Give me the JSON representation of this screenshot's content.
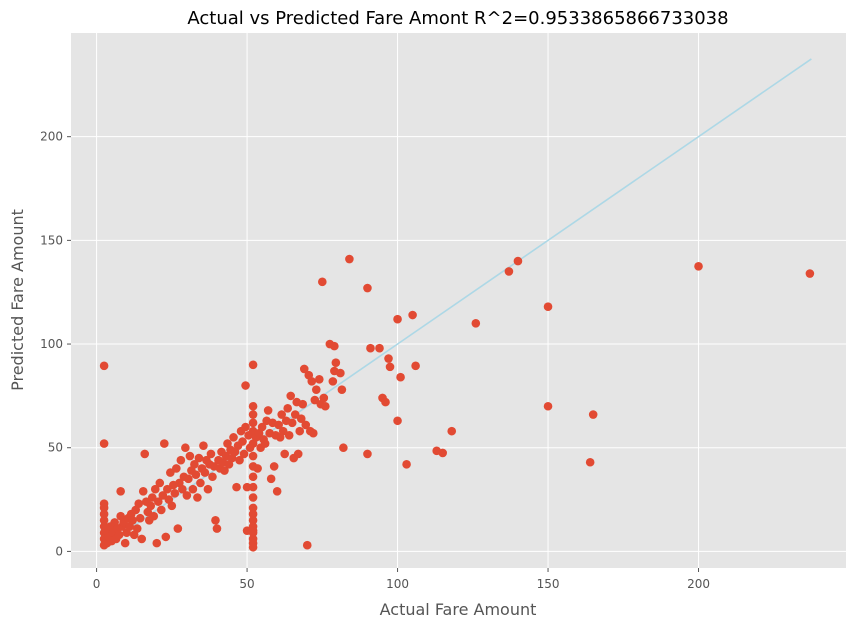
{
  "chart_data": {
    "type": "scatter",
    "title": "Actual vs Predicted Fare Amont R^2=0.9533865866733038",
    "xlabel": "Actual Fare Amount",
    "ylabel": "Predicted Fare Amount",
    "xlim": [
      -8.5,
      249
    ],
    "ylim": [
      -8,
      250
    ],
    "xticks": [
      0,
      50,
      100,
      150,
      200
    ],
    "yticks": [
      0,
      50,
      100,
      150,
      200
    ],
    "grid": true,
    "colors": {
      "background": "#e5e5e5",
      "points": "#e24a33",
      "reference_line": "#add8e6",
      "grid": "#ffffff"
    },
    "series": [
      {
        "name": "identity",
        "kind": "line",
        "x": [
          2.5,
          237.5
        ],
        "y": [
          2.5,
          237.5
        ]
      },
      {
        "name": "points",
        "kind": "scatter",
        "points": [
          [
            2.5,
            89.5
          ],
          [
            2.5,
            52
          ],
          [
            2.5,
            23
          ],
          [
            2.5,
            21
          ],
          [
            2.5,
            18
          ],
          [
            2.5,
            15
          ],
          [
            2.5,
            12
          ],
          [
            2.5,
            9
          ],
          [
            2.5,
            6
          ],
          [
            2.5,
            3
          ],
          [
            3,
            10
          ],
          [
            3.5,
            4
          ],
          [
            4,
            7
          ],
          [
            4.5,
            12
          ],
          [
            5,
            5
          ],
          [
            5.5,
            9
          ],
          [
            6,
            14
          ],
          [
            6.5,
            6
          ],
          [
            7,
            11
          ],
          [
            7.5,
            8
          ],
          [
            8,
            29
          ],
          [
            8,
            17
          ],
          [
            8.5,
            12
          ],
          [
            9,
            14
          ],
          [
            9.5,
            4
          ],
          [
            10,
            9
          ],
          [
            10.5,
            16
          ],
          [
            11,
            12
          ],
          [
            11.5,
            18
          ],
          [
            12,
            15
          ],
          [
            12.5,
            8
          ],
          [
            13,
            20
          ],
          [
            13.5,
            11
          ],
          [
            14,
            23
          ],
          [
            14.5,
            16
          ],
          [
            15,
            6
          ],
          [
            15.5,
            29
          ],
          [
            16,
            47
          ],
          [
            16.5,
            24
          ],
          [
            17,
            19
          ],
          [
            17.5,
            15
          ],
          [
            18,
            22
          ],
          [
            18.5,
            26
          ],
          [
            19,
            17
          ],
          [
            19.5,
            30
          ],
          [
            20,
            4
          ],
          [
            20.5,
            24
          ],
          [
            21,
            33
          ],
          [
            21.5,
            20
          ],
          [
            22,
            27
          ],
          [
            22.5,
            52
          ],
          [
            23,
            7
          ],
          [
            23.5,
            30
          ],
          [
            24,
            25
          ],
          [
            24.5,
            38
          ],
          [
            25,
            22
          ],
          [
            25.5,
            32
          ],
          [
            26,
            28
          ],
          [
            26.5,
            40
          ],
          [
            27,
            11
          ],
          [
            27.5,
            33
          ],
          [
            28,
            44
          ],
          [
            28.5,
            30
          ],
          [
            29,
            36
          ],
          [
            29.5,
            50
          ],
          [
            30,
            27
          ],
          [
            30.5,
            35
          ],
          [
            31,
            46
          ],
          [
            31.5,
            39
          ],
          [
            32,
            30
          ],
          [
            32.5,
            42
          ],
          [
            33,
            37
          ],
          [
            33.5,
            26
          ],
          [
            34,
            45
          ],
          [
            34.5,
            33
          ],
          [
            35,
            40
          ],
          [
            35.5,
            51
          ],
          [
            36,
            38
          ],
          [
            36.5,
            44
          ],
          [
            37,
            30
          ],
          [
            37.5,
            42
          ],
          [
            38,
            47
          ],
          [
            38.5,
            36
          ],
          [
            39,
            41
          ],
          [
            39.5,
            15
          ],
          [
            40,
            11
          ],
          [
            40.5,
            44
          ],
          [
            41,
            40
          ],
          [
            41.5,
            48
          ],
          [
            42,
            43
          ],
          [
            42.5,
            39
          ],
          [
            43,
            46
          ],
          [
            43.5,
            52
          ],
          [
            44,
            42
          ],
          [
            44.5,
            49
          ],
          [
            45,
            45
          ],
          [
            45.5,
            55
          ],
          [
            46,
            48
          ],
          [
            46.5,
            31
          ],
          [
            47,
            51
          ],
          [
            47.5,
            44
          ],
          [
            48,
            58
          ],
          [
            48.5,
            53
          ],
          [
            49,
            47
          ],
          [
            49.5,
            80
          ],
          [
            49.5,
            60
          ],
          [
            50,
            10
          ],
          [
            50,
            31
          ],
          [
            50.5,
            56
          ],
          [
            51,
            50
          ],
          [
            52,
            90
          ],
          [
            52,
            70
          ],
          [
            52,
            66
          ],
          [
            52,
            62
          ],
          [
            52,
            58
          ],
          [
            52,
            52
          ],
          [
            52,
            46
          ],
          [
            52,
            41
          ],
          [
            52,
            36
          ],
          [
            52,
            31
          ],
          [
            52,
            26
          ],
          [
            52,
            21
          ],
          [
            52,
            18
          ],
          [
            52,
            15
          ],
          [
            52,
            12
          ],
          [
            52,
            9
          ],
          [
            52,
            6
          ],
          [
            52,
            4
          ],
          [
            52,
            2
          ],
          [
            52,
            10
          ],
          [
            53,
            55
          ],
          [
            53.5,
            40
          ],
          [
            54,
            57
          ],
          [
            54.5,
            50
          ],
          [
            55,
            60
          ],
          [
            55.5,
            54
          ],
          [
            56,
            52
          ],
          [
            56.5,
            63
          ],
          [
            57,
            68
          ],
          [
            57.5,
            57
          ],
          [
            58,
            35
          ],
          [
            58.5,
            62
          ],
          [
            59,
            41
          ],
          [
            59.5,
            56
          ],
          [
            60,
            29
          ],
          [
            60.5,
            61
          ],
          [
            61,
            55
          ],
          [
            61.5,
            66
          ],
          [
            62,
            58
          ],
          [
            62.5,
            47
          ],
          [
            63,
            63
          ],
          [
            63.5,
            69
          ],
          [
            64,
            56
          ],
          [
            64.5,
            75
          ],
          [
            65,
            62
          ],
          [
            65.5,
            45
          ],
          [
            66,
            66
          ],
          [
            66.5,
            72
          ],
          [
            67,
            47
          ],
          [
            67.5,
            58
          ],
          [
            68,
            64
          ],
          [
            68.5,
            71
          ],
          [
            69,
            88
          ],
          [
            69.5,
            61
          ],
          [
            70,
            3
          ],
          [
            70.5,
            85
          ],
          [
            71,
            58
          ],
          [
            71.5,
            82
          ],
          [
            72,
            57
          ],
          [
            72.5,
            73
          ],
          [
            73,
            78
          ],
          [
            74,
            83
          ],
          [
            74.5,
            71
          ],
          [
            75,
            130
          ],
          [
            75.5,
            74
          ],
          [
            76,
            70
          ],
          [
            77.5,
            100
          ],
          [
            78.5,
            82
          ],
          [
            79,
            99
          ],
          [
            79.5,
            91
          ],
          [
            79,
            87
          ],
          [
            81,
            86
          ],
          [
            81.5,
            78
          ],
          [
            82,
            50
          ],
          [
            84,
            141
          ],
          [
            90,
            127
          ],
          [
            90,
            47
          ],
          [
            91,
            98
          ],
          [
            94,
            98
          ],
          [
            95,
            74
          ],
          [
            96,
            72
          ],
          [
            97,
            93
          ],
          [
            97.5,
            89
          ],
          [
            100,
            112
          ],
          [
            100,
            63
          ],
          [
            101,
            84
          ],
          [
            103,
            42
          ],
          [
            105,
            114
          ],
          [
            106,
            89.5
          ],
          [
            113,
            48.5
          ],
          [
            115,
            47.5
          ],
          [
            118,
            58
          ],
          [
            126,
            110
          ],
          [
            137,
            135
          ],
          [
            140,
            140
          ],
          [
            150,
            118
          ],
          [
            150,
            70
          ],
          [
            164,
            43
          ],
          [
            165,
            66
          ],
          [
            200,
            137.5
          ],
          [
            237,
            134
          ]
        ]
      }
    ]
  }
}
